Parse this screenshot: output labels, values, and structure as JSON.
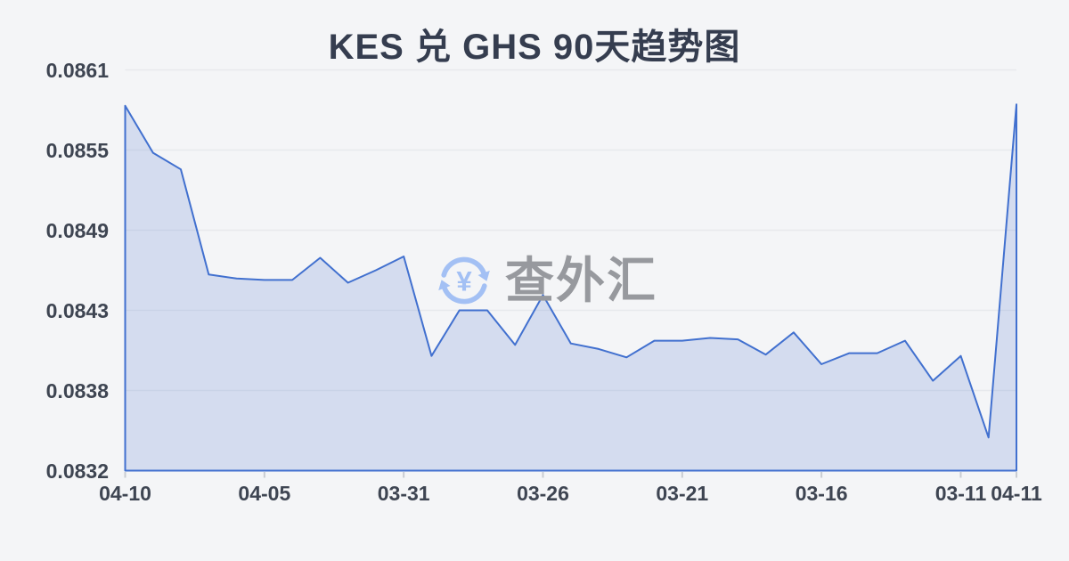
{
  "title": "KES 兑 GHS 90天趋势图",
  "watermark": {
    "text": "查外汇",
    "symbol": "¥"
  },
  "colors": {
    "background": "#f4f5f7",
    "title_text": "#353d4f",
    "axis_text": "#3e4552",
    "line": "#4170cf",
    "area_fill": "rgba(65,112,207,0.18)",
    "grid_line": "#e7e9ed",
    "tick_mark": "#c9ccd2",
    "watermark_text": "#97999e",
    "watermark_icon": "#a3c0f4"
  },
  "chart_data": {
    "type": "area",
    "title": "KES 兑 GHS 90天趋势图",
    "xlabel": "",
    "ylabel": "",
    "grid": true,
    "legend": false,
    "y_min": 0.0832,
    "y_max": 0.0861,
    "y_tick_labels": [
      "0.0861",
      "0.0855",
      "0.0849",
      "0.0843",
      "0.0838",
      "0.0832"
    ],
    "x_tick_labels": [
      {
        "index": 0,
        "label": "04-10"
      },
      {
        "index": 5,
        "label": "04-05"
      },
      {
        "index": 10,
        "label": "03-31"
      },
      {
        "index": 15,
        "label": "03-26"
      },
      {
        "index": 20,
        "label": "03-21"
      },
      {
        "index": 25,
        "label": "03-16"
      },
      {
        "index": 30,
        "label": "03-11"
      },
      {
        "index": 32,
        "label": "04-11"
      }
    ],
    "values": [
      0.08584,
      0.0855,
      0.08538,
      0.08462,
      0.08459,
      0.08458,
      0.08458,
      0.08474,
      0.08456,
      0.08465,
      0.08475,
      0.08403,
      0.08436,
      0.08436,
      0.08411,
      0.08447,
      0.08412,
      0.08408,
      0.08402,
      0.08414,
      0.08414,
      0.08416,
      0.08415,
      0.08404,
      0.0842,
      0.08397,
      0.08405,
      0.08405,
      0.08414,
      0.08385,
      0.08403,
      0.08344,
      0.08585
    ]
  }
}
